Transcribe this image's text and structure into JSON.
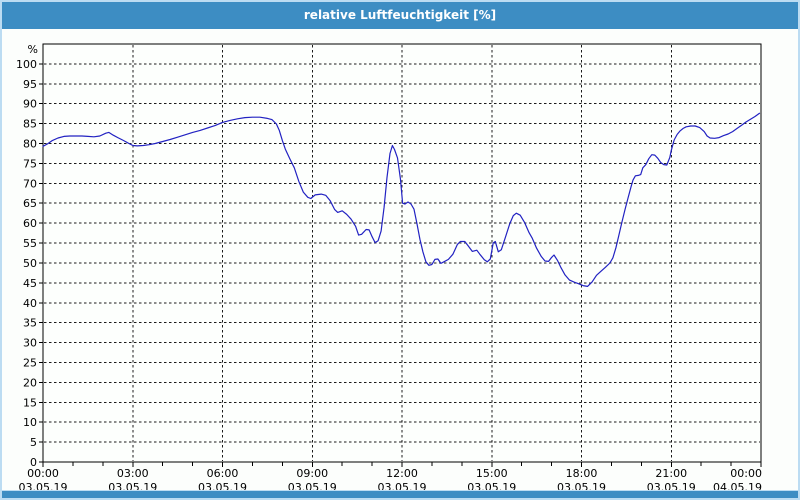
{
  "window": {
    "title": "relative Luftfeuchtigkeit [%]"
  },
  "colors": {
    "titlebar_bg": "#3d8dc3",
    "bottombar_bg": "#3d8dc3",
    "frame": "#bcdcf2",
    "content_bg": "#fcfefc",
    "plot_bg": "#fdfffd",
    "plot_border": "#000000",
    "grid": "#1a1a1a",
    "tick": "#000000",
    "label_text": "#000000",
    "title_text": "#ffffff",
    "line": "#2222c2"
  },
  "chart_data": {
    "type": "line",
    "title": "relative Luftfeuchtigkeit [%]",
    "y_unit_label": "%",
    "ylim": [
      0,
      105
    ],
    "ytick_interval": 5,
    "yticks": [
      0,
      5,
      10,
      15,
      20,
      25,
      30,
      35,
      40,
      45,
      50,
      55,
      60,
      65,
      70,
      75,
      80,
      85,
      90,
      95,
      100
    ],
    "x_hours_range": [
      0,
      24
    ],
    "x_minor_tick_hours": 1,
    "grid": "dashed",
    "legend_position": "none",
    "xticks": [
      {
        "hour": 0,
        "time": "00:00",
        "date": "03.05.19"
      },
      {
        "hour": 3,
        "time": "03:00",
        "date": "03.05.19"
      },
      {
        "hour": 6,
        "time": "06:00",
        "date": "03.05.19"
      },
      {
        "hour": 9,
        "time": "09:00",
        "date": "03.05.19"
      },
      {
        "hour": 12,
        "time": "12:00",
        "date": "03.05.19"
      },
      {
        "hour": 15,
        "time": "15:00",
        "date": "03.05.19"
      },
      {
        "hour": 18,
        "time": "18:00",
        "date": "03.05.19"
      },
      {
        "hour": 21,
        "time": "21:00",
        "date": "03.05.19"
      },
      {
        "hour": 24,
        "time": "00:00",
        "date": "04.05.19"
      }
    ],
    "series": [
      {
        "name": "relative Luftfeuchtigkeit [%]",
        "color": "#2222c2",
        "points": [
          [
            0.0,
            79.3
          ],
          [
            0.15,
            79.9
          ],
          [
            0.3,
            80.7
          ],
          [
            0.5,
            81.4
          ],
          [
            0.7,
            81.8
          ],
          [
            0.9,
            81.9
          ],
          [
            1.1,
            81.9
          ],
          [
            1.3,
            81.9
          ],
          [
            1.5,
            81.8
          ],
          [
            1.7,
            81.7
          ],
          [
            1.9,
            81.9
          ],
          [
            2.1,
            82.6
          ],
          [
            2.2,
            82.8
          ],
          [
            2.35,
            82.1
          ],
          [
            2.5,
            81.5
          ],
          [
            2.65,
            80.9
          ],
          [
            2.85,
            80.1
          ],
          [
            3.0,
            79.5
          ],
          [
            3.15,
            79.4
          ],
          [
            3.35,
            79.5
          ],
          [
            3.55,
            79.7
          ],
          [
            3.75,
            80.0
          ],
          [
            4.0,
            80.5
          ],
          [
            4.25,
            81.0
          ],
          [
            4.5,
            81.6
          ],
          [
            4.75,
            82.2
          ],
          [
            5.0,
            82.8
          ],
          [
            5.25,
            83.3
          ],
          [
            5.5,
            83.9
          ],
          [
            5.75,
            84.5
          ],
          [
            6.0,
            85.3
          ],
          [
            6.25,
            85.8
          ],
          [
            6.5,
            86.2
          ],
          [
            6.75,
            86.5
          ],
          [
            7.0,
            86.6
          ],
          [
            7.25,
            86.6
          ],
          [
            7.5,
            86.3
          ],
          [
            7.65,
            86.0
          ],
          [
            7.8,
            84.9
          ],
          [
            7.9,
            83.3
          ],
          [
            8.0,
            80.8
          ],
          [
            8.1,
            78.6
          ],
          [
            8.25,
            76.2
          ],
          [
            8.4,
            73.9
          ],
          [
            8.55,
            70.5
          ],
          [
            8.7,
            67.8
          ],
          [
            8.85,
            66.5
          ],
          [
            8.95,
            66.2
          ],
          [
            9.1,
            67.1
          ],
          [
            9.3,
            67.3
          ],
          [
            9.45,
            67.0
          ],
          [
            9.6,
            65.6
          ],
          [
            9.75,
            63.4
          ],
          [
            9.85,
            62.7
          ],
          [
            10.0,
            63.1
          ],
          [
            10.15,
            62.2
          ],
          [
            10.3,
            61.0
          ],
          [
            10.45,
            59.2
          ],
          [
            10.55,
            57.0
          ],
          [
            10.65,
            57.2
          ],
          [
            10.8,
            58.4
          ],
          [
            10.9,
            58.3
          ],
          [
            11.0,
            56.6
          ],
          [
            11.1,
            55.1
          ],
          [
            11.2,
            55.6
          ],
          [
            11.3,
            58.0
          ],
          [
            11.4,
            64.0
          ],
          [
            11.5,
            71.5
          ],
          [
            11.6,
            77.5
          ],
          [
            11.68,
            79.5
          ],
          [
            11.75,
            78.5
          ],
          [
            11.85,
            76.4
          ],
          [
            11.95,
            71.0
          ],
          [
            12.02,
            65.0
          ],
          [
            12.1,
            64.8
          ],
          [
            12.2,
            65.3
          ],
          [
            12.3,
            64.8
          ],
          [
            12.4,
            63.5
          ],
          [
            12.5,
            59.8
          ],
          [
            12.6,
            56.0
          ],
          [
            12.7,
            52.8
          ],
          [
            12.8,
            50.3
          ],
          [
            12.9,
            49.4
          ],
          [
            13.0,
            49.6
          ],
          [
            13.1,
            50.9
          ],
          [
            13.2,
            51.0
          ],
          [
            13.3,
            49.9
          ],
          [
            13.4,
            50.3
          ],
          [
            13.55,
            50.9
          ],
          [
            13.7,
            52.2
          ],
          [
            13.85,
            54.6
          ],
          [
            13.95,
            55.4
          ],
          [
            14.1,
            55.4
          ],
          [
            14.2,
            54.4
          ],
          [
            14.35,
            52.9
          ],
          [
            14.5,
            53.2
          ],
          [
            14.6,
            52.2
          ],
          [
            14.75,
            50.8
          ],
          [
            14.85,
            50.3
          ],
          [
            14.95,
            51.0
          ],
          [
            15.05,
            55.0
          ],
          [
            15.12,
            55.4
          ],
          [
            15.22,
            52.8
          ],
          [
            15.32,
            53.3
          ],
          [
            15.45,
            56.3
          ],
          [
            15.6,
            59.8
          ],
          [
            15.72,
            61.9
          ],
          [
            15.82,
            62.5
          ],
          [
            15.95,
            62.0
          ],
          [
            16.1,
            60.1
          ],
          [
            16.25,
            57.6
          ],
          [
            16.35,
            56.3
          ],
          [
            16.5,
            53.7
          ],
          [
            16.65,
            51.7
          ],
          [
            16.78,
            50.5
          ],
          [
            16.9,
            50.4
          ],
          [
            17.0,
            51.4
          ],
          [
            17.08,
            52.0
          ],
          [
            17.2,
            50.6
          ],
          [
            17.3,
            49.0
          ],
          [
            17.45,
            47.0
          ],
          [
            17.6,
            45.7
          ],
          [
            17.75,
            45.2
          ],
          [
            17.9,
            44.8
          ],
          [
            18.05,
            44.3
          ],
          [
            18.2,
            44.1
          ],
          [
            18.35,
            45.2
          ],
          [
            18.5,
            46.9
          ],
          [
            18.65,
            47.9
          ],
          [
            18.8,
            48.9
          ],
          [
            18.95,
            50.0
          ],
          [
            19.05,
            51.3
          ],
          [
            19.15,
            53.8
          ],
          [
            19.25,
            57.0
          ],
          [
            19.35,
            60.2
          ],
          [
            19.45,
            63.3
          ],
          [
            19.55,
            66.2
          ],
          [
            19.65,
            69.0
          ],
          [
            19.72,
            70.8
          ],
          [
            19.8,
            71.9
          ],
          [
            19.9,
            72.0
          ],
          [
            19.98,
            72.2
          ],
          [
            20.05,
            73.9
          ],
          [
            20.15,
            74.7
          ],
          [
            20.25,
            76.2
          ],
          [
            20.35,
            77.2
          ],
          [
            20.45,
            77.1
          ],
          [
            20.55,
            76.3
          ],
          [
            20.65,
            75.2
          ],
          [
            20.75,
            74.7
          ],
          [
            20.85,
            74.6
          ],
          [
            20.95,
            76.5
          ],
          [
            21.0,
            78.3
          ],
          [
            21.1,
            80.9
          ],
          [
            21.2,
            82.3
          ],
          [
            21.3,
            83.2
          ],
          [
            21.4,
            83.8
          ],
          [
            21.5,
            84.2
          ],
          [
            21.65,
            84.4
          ],
          [
            21.8,
            84.4
          ],
          [
            21.95,
            84.0
          ],
          [
            22.1,
            83.0
          ],
          [
            22.2,
            81.9
          ],
          [
            22.3,
            81.4
          ],
          [
            22.45,
            81.3
          ],
          [
            22.6,
            81.5
          ],
          [
            22.75,
            82.0
          ],
          [
            22.9,
            82.4
          ],
          [
            23.05,
            83.0
          ],
          [
            23.2,
            83.8
          ],
          [
            23.35,
            84.6
          ],
          [
            23.5,
            85.4
          ],
          [
            23.65,
            86.1
          ],
          [
            23.8,
            86.8
          ],
          [
            23.95,
            87.6
          ]
        ]
      }
    ]
  }
}
